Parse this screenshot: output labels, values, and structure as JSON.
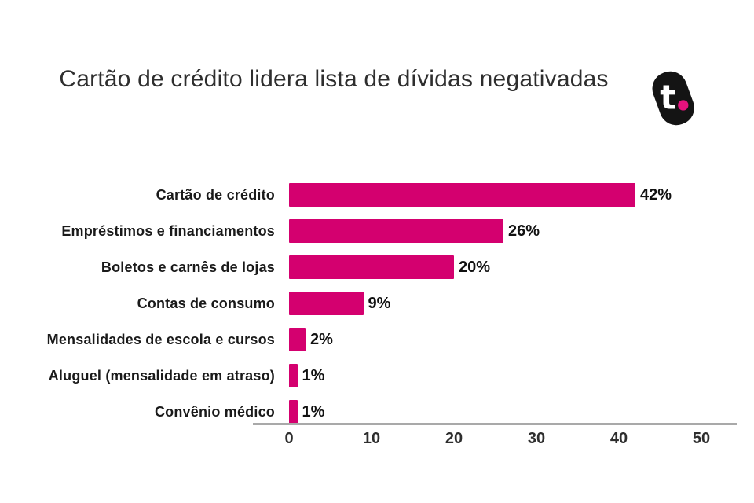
{
  "header": {
    "title": "Cartão de crédito lidera lista de dívidas negativadas",
    "logo": {
      "letter": "t"
    }
  },
  "colors": {
    "background": "#FFFFFF",
    "bar": "#D4006F",
    "logo_bg": "#141414",
    "logo_dot": "#E5127D",
    "title_text": "#2E2E2E",
    "label_text": "#1A1A1A",
    "value_text": "#111111",
    "axis_line": "#A9A9A9",
    "tick_text": "#2E2E2E"
  },
  "chart_data": {
    "type": "bar",
    "orientation": "horizontal",
    "title": "Cartão de crédito lidera lista de dívidas negativadas",
    "categories": [
      "Cartão de crédito",
      "Empréstimos e financiamentos",
      "Boletos e carnês de lojas",
      "Contas de consumo",
      "Mensalidades de escola e cursos",
      "Aluguel (mensalidade em atraso)",
      "Convênio médico"
    ],
    "values": [
      42,
      26,
      20,
      9,
      2,
      1,
      1
    ],
    "value_labels": [
      "42%",
      "26%",
      "20%",
      "9%",
      "2%",
      "1%",
      "1%"
    ],
    "unit": "%",
    "xlabel": "",
    "ylabel": "",
    "xticks": [
      0,
      10,
      20,
      30,
      40,
      50
    ],
    "xlim": [
      0,
      50
    ],
    "grid": false,
    "legend": false
  }
}
